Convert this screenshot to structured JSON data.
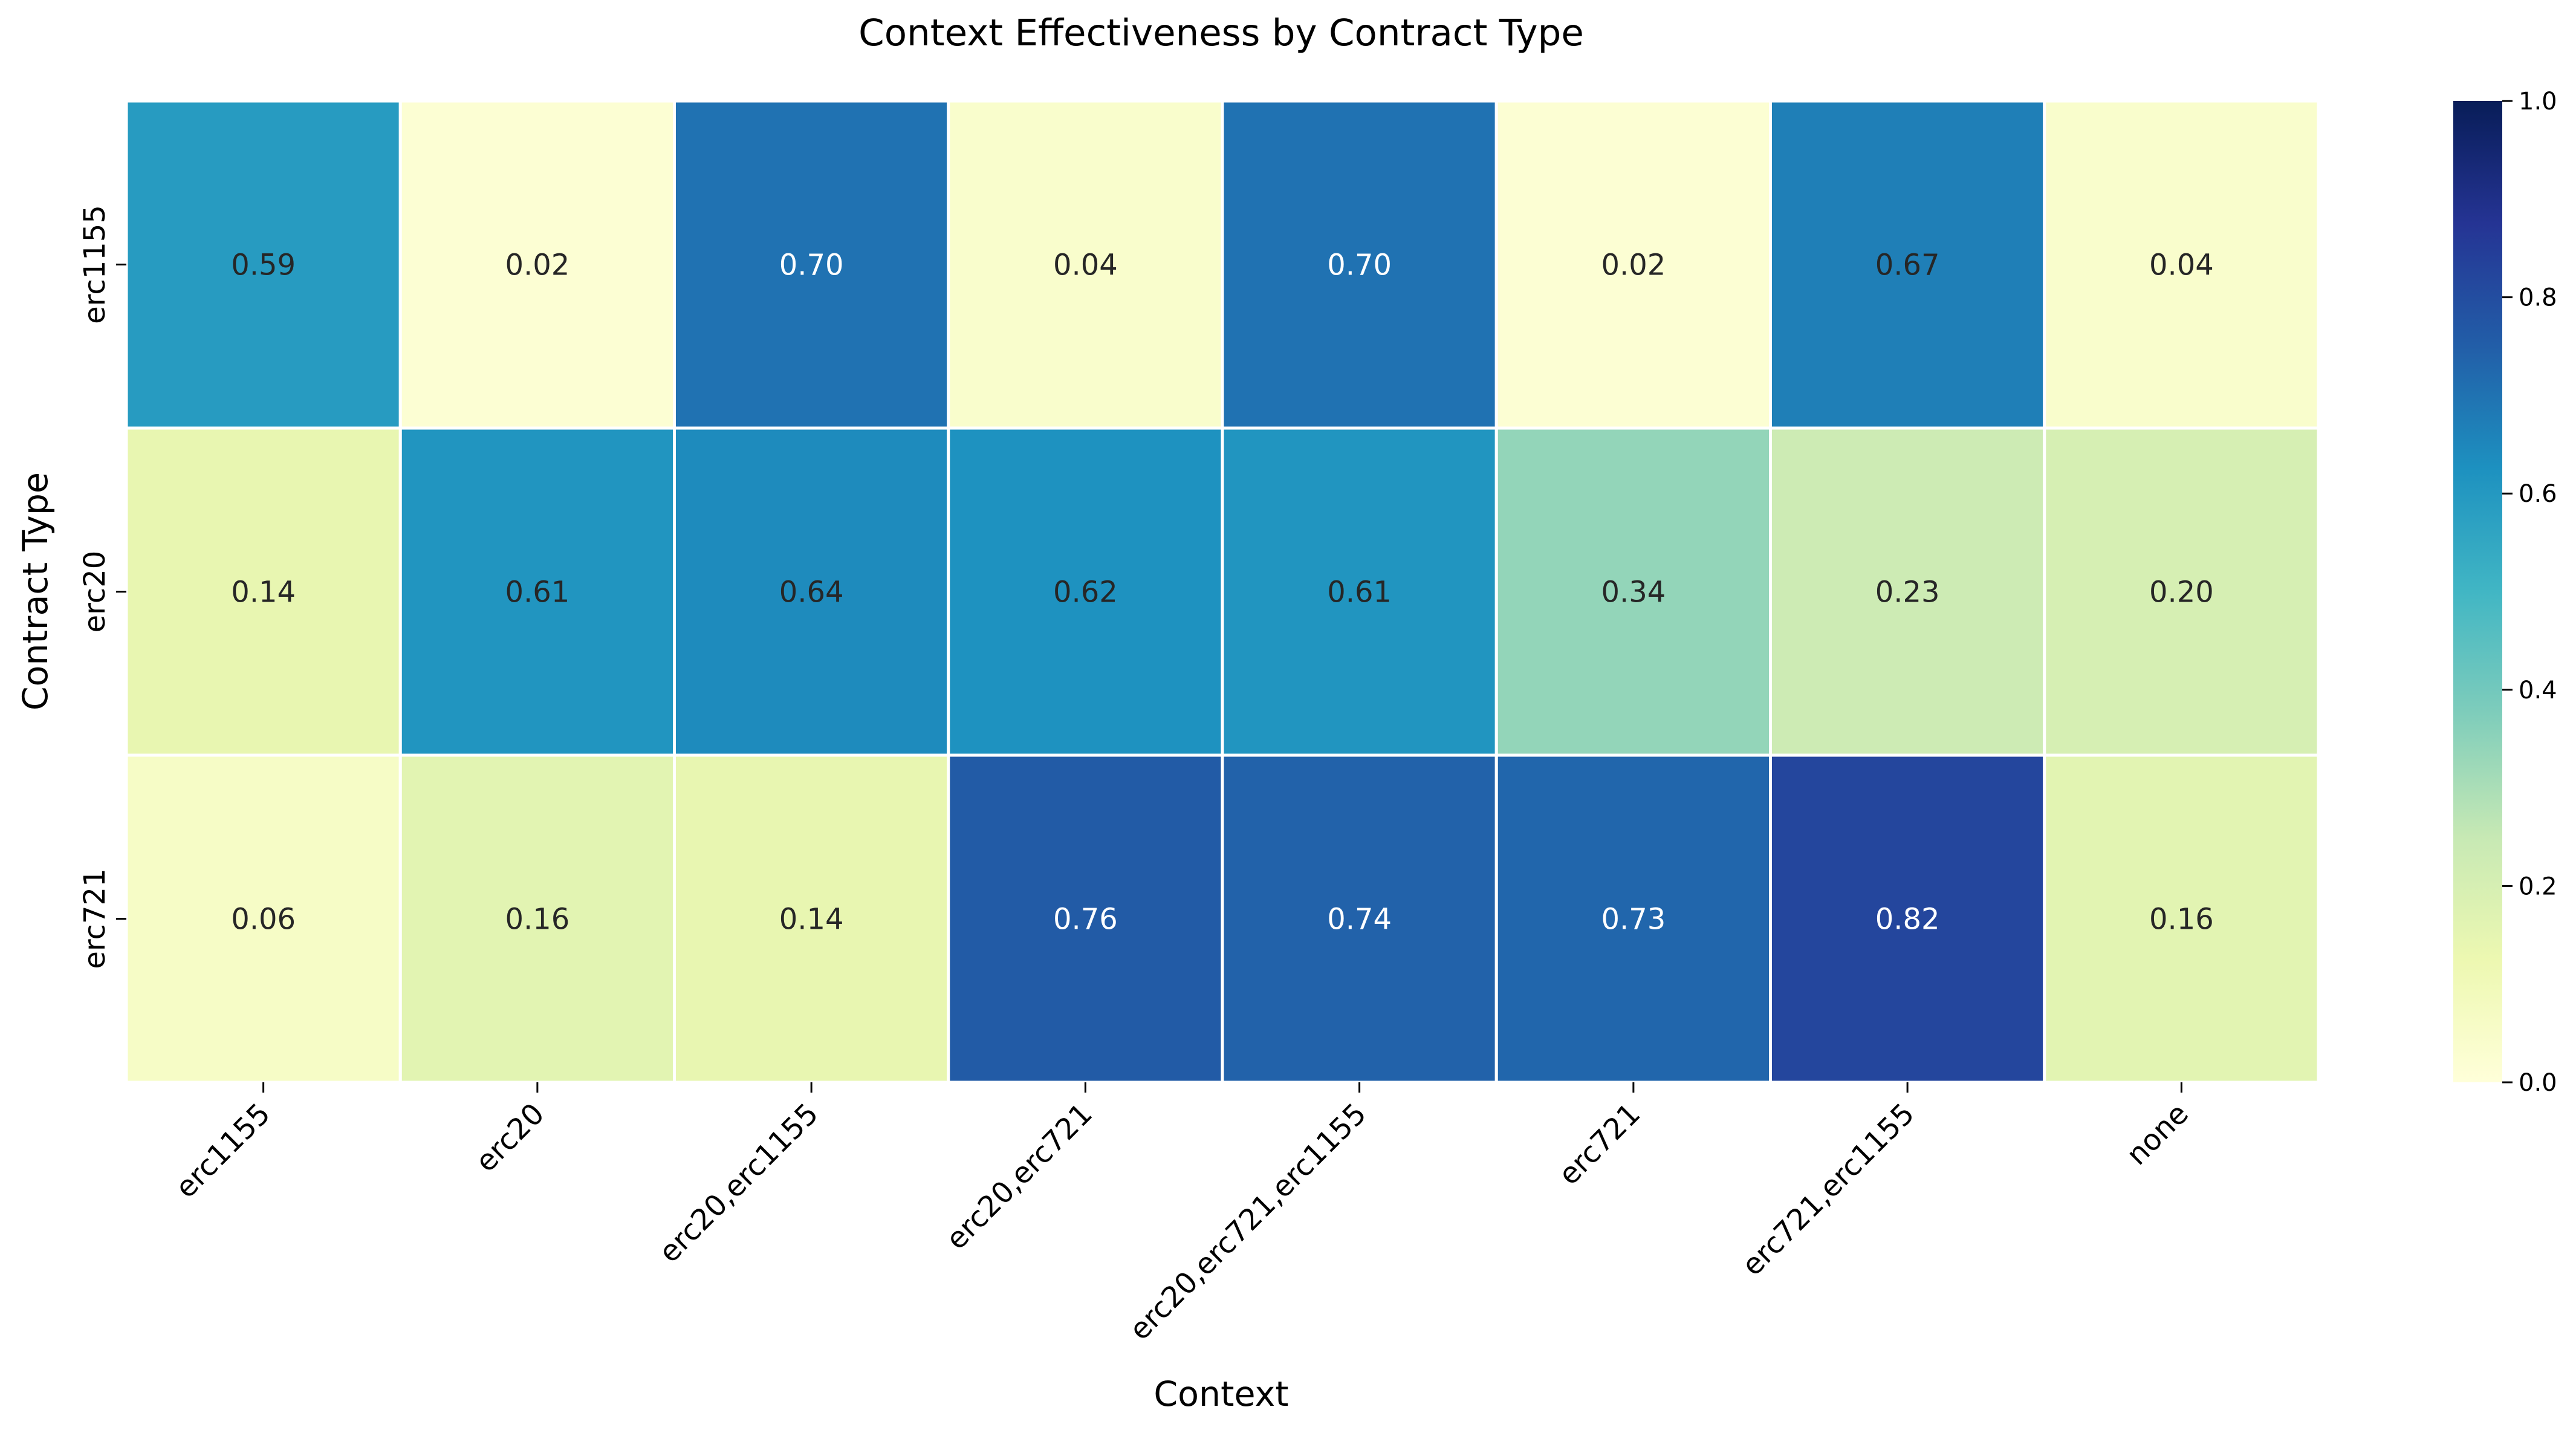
{
  "chart_data": {
    "type": "heatmap",
    "title": "Context Effectiveness by Contract Type",
    "xlabel": "Context",
    "ylabel": "Contract Type",
    "x_categories": [
      "erc1155",
      "erc20",
      "erc20,erc1155",
      "erc20,erc721",
      "erc20,erc721,erc1155",
      "erc721",
      "erc721,erc1155",
      "none"
    ],
    "y_categories": [
      "erc1155",
      "erc20",
      "erc721"
    ],
    "values": [
      [
        0.59,
        0.02,
        0.7,
        0.04,
        0.7,
        0.02,
        0.67,
        0.04
      ],
      [
        0.14,
        0.61,
        0.64,
        0.62,
        0.61,
        0.34,
        0.23,
        0.2
      ],
      [
        0.06,
        0.16,
        0.14,
        0.76,
        0.74,
        0.73,
        0.82,
        0.16
      ]
    ],
    "value_labels": [
      [
        "0.59",
        "0.02",
        "0.70",
        "0.04",
        "0.70",
        "0.02",
        "0.67",
        "0.04"
      ],
      [
        "0.14",
        "0.61",
        "0.64",
        "0.62",
        "0.61",
        "0.34",
        "0.23",
        "0.20"
      ],
      [
        "0.06",
        "0.16",
        "0.14",
        "0.76",
        "0.74",
        "0.73",
        "0.82",
        "0.16"
      ]
    ],
    "colormap": "YlGnBu",
    "vmin": 0.0,
    "vmax": 1.0,
    "colorbar_ticks": [
      "0.0",
      "0.2",
      "0.4",
      "0.6",
      "0.8",
      "1.0"
    ],
    "colorbar_tick_values": [
      0.0,
      0.2,
      0.4,
      0.6,
      0.8,
      1.0
    ],
    "cell_border_color": "#ffffff",
    "text_color_dark": "#262626",
    "text_color_light": "#ffffff"
  }
}
